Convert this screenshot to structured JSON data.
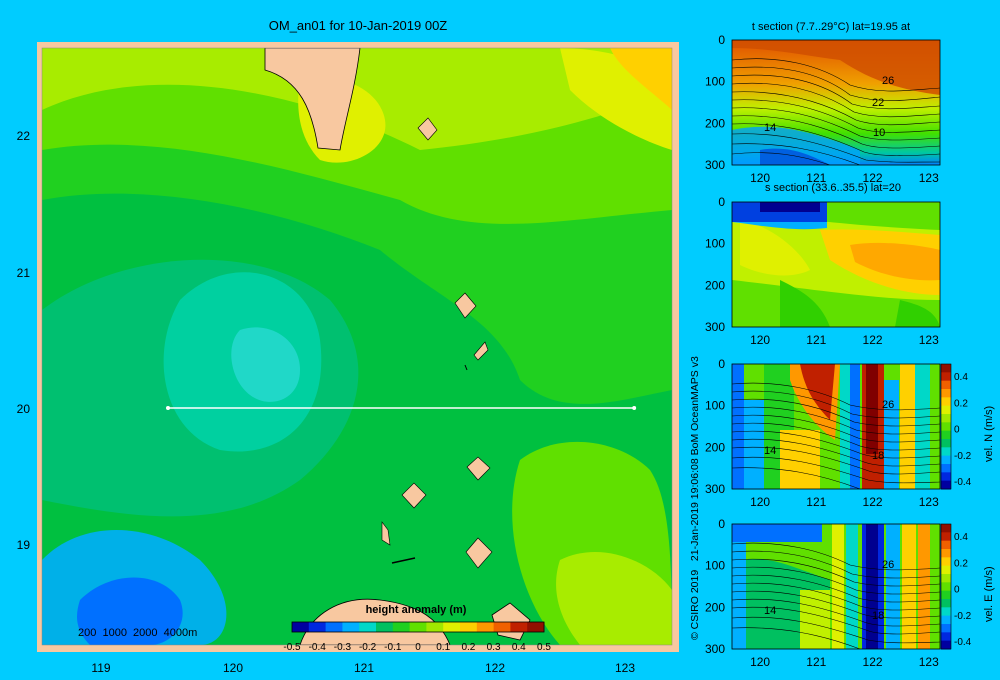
{
  "colors": {
    "background": "#00ccff",
    "frame": "#f8c8a0",
    "land": "#f8c8a0",
    "section_line": "#ffffff",
    "colorbar": [
      "#0000a0",
      "#0028e0",
      "#0070ff",
      "#00b0ff",
      "#00d8c8",
      "#00c060",
      "#20d020",
      "#60e000",
      "#a0e800",
      "#e0f000",
      "#ffd000",
      "#ff9800",
      "#f06000",
      "#c02000",
      "#901000"
    ]
  },
  "main_map": {
    "title": "OM_an01 for 10-Jan-2019 00Z",
    "x_ticks": [
      "119",
      "120",
      "121",
      "122",
      "123"
    ],
    "y_ticks": [
      "22",
      "21",
      "20",
      "19"
    ],
    "depth_legend": "200  1000  2000  4000m",
    "colorbar_title": "height anomaly (m)",
    "colorbar_ticks": [
      "-0.5",
      "-0.4",
      "-0.3",
      "-0.2",
      "-0.1",
      "0",
      "0.1",
      "0.2",
      "0.3",
      "0.4",
      "0.5"
    ],
    "section_line_lat": 20
  },
  "copyright": "© CSIRO 2019   21-Jan-2019 19:06:08 BoM OceanMAPS v3",
  "panels": [
    {
      "title": "t section (7.7..29°C) lat=19.95 at",
      "contour_labels": [
        "26",
        "22",
        "14",
        "10"
      ],
      "y_ticks": [
        "0",
        "100",
        "200",
        "300"
      ],
      "x_ticks": [
        "120",
        "121",
        "122",
        "123"
      ]
    },
    {
      "title": "s section (33.6..35.5) lat=20",
      "contour_labels": [],
      "y_ticks": [
        "0",
        "100",
        "200",
        "300"
      ],
      "x_ticks": [
        "120",
        "121",
        "122",
        "123"
      ]
    },
    {
      "title": "",
      "contour_labels": [
        "26",
        "14",
        "18"
      ],
      "y_ticks": [
        "0",
        "100",
        "200",
        "300"
      ],
      "x_ticks": [
        "120",
        "121",
        "122",
        "123"
      ],
      "colorbar_label": "vel. N (m/s)",
      "colorbar_ticks": [
        "0.4",
        "0.2",
        "0",
        "-0.2",
        "-0.4"
      ]
    },
    {
      "title": "",
      "contour_labels": [
        "26",
        "14",
        "18"
      ],
      "y_ticks": [
        "0",
        "100",
        "200",
        "300"
      ],
      "x_ticks": [
        "120",
        "121",
        "122",
        "123"
      ],
      "colorbar_label": "vel. E (m/s)",
      "colorbar_ticks": [
        "0.4",
        "0.2",
        "0",
        "-0.2",
        "-0.4"
      ]
    }
  ],
  "chart_data": [
    {
      "type": "heatmap",
      "title": "OM_an01 for 10-Jan-2019 00Z",
      "xlabel": "",
      "ylabel": "",
      "xlim": [
        118.5,
        123.5
      ],
      "ylim": [
        18.3,
        22.7
      ],
      "colorbar": {
        "label": "height anomaly (m)",
        "range": [
          -0.5,
          0.5
        ]
      },
      "section": {
        "lat": 20,
        "lon_start": 119.5,
        "lon_end": 123.2
      }
    },
    {
      "type": "heatmap",
      "title": "t section (7.7..29°C) lat=19.95 at",
      "xlim": [
        119.5,
        123.2
      ],
      "ylim": [
        300,
        0
      ]
    },
    {
      "type": "heatmap",
      "title": "s section (33.6..35.5) lat=20",
      "xlim": [
        119.5,
        123.2
      ],
      "ylim": [
        300,
        0
      ]
    },
    {
      "type": "heatmap",
      "title": "",
      "xlim": [
        119.5,
        123.2
      ],
      "ylim": [
        300,
        0
      ],
      "colorbar": {
        "label": "vel. N (m/s)",
        "range": [
          -0.4,
          0.4
        ]
      }
    },
    {
      "type": "heatmap",
      "title": "",
      "xlim": [
        119.5,
        123.2
      ],
      "ylim": [
        300,
        0
      ],
      "colorbar": {
        "label": "vel. E (m/s)",
        "range": [
          -0.4,
          0.4
        ]
      }
    }
  ]
}
